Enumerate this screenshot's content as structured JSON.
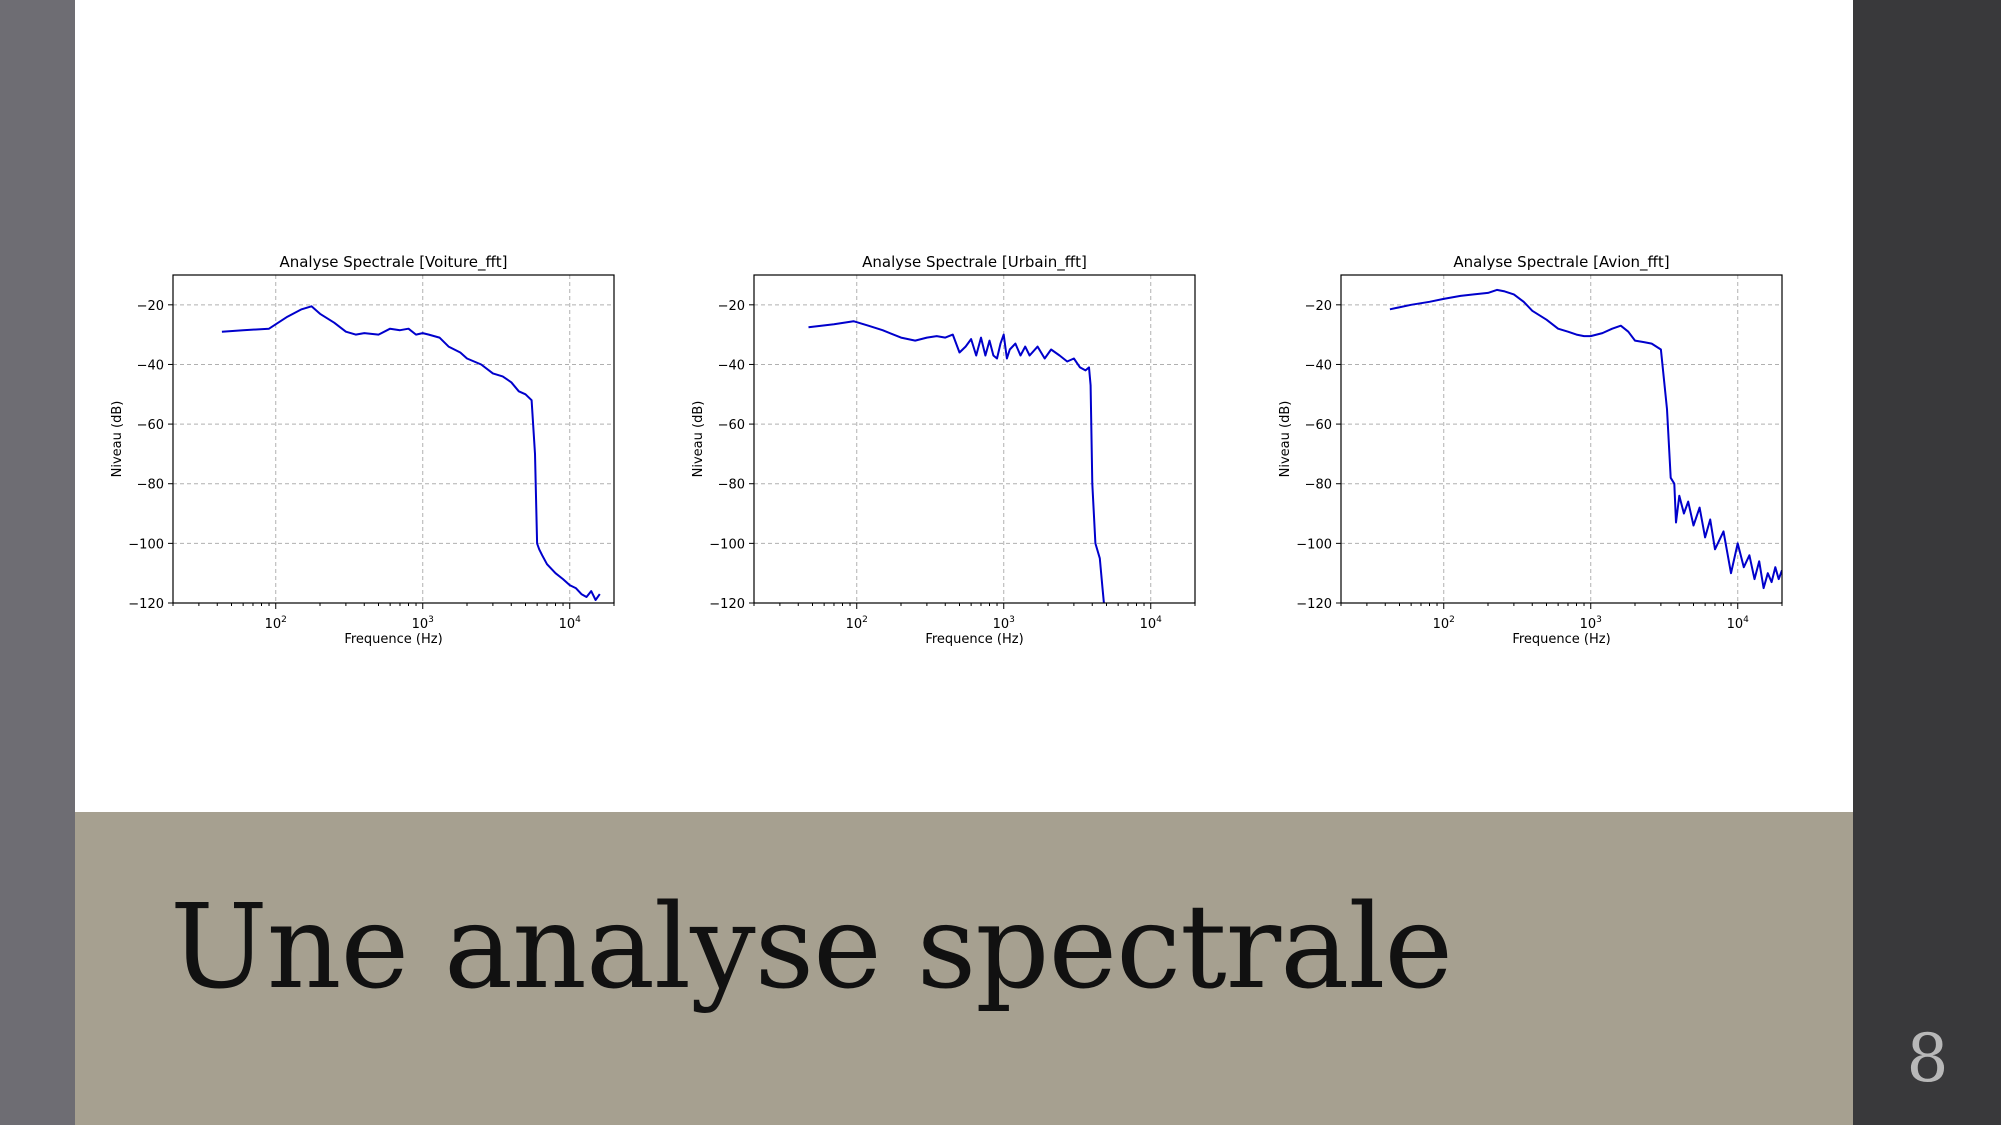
{
  "slide": {
    "title": "Une analyse spectrale",
    "page_number": "8"
  },
  "colors": {
    "series": "#0000cc",
    "title_band": "#a6a090",
    "left_band": "#6e6d73",
    "right_band": "#39393b"
  },
  "chart_data": [
    {
      "type": "line",
      "title": "Analyse Spectrale [Voiture_fft]",
      "xlabel": "Frequence (Hz)",
      "ylabel": "Niveau (dB)",
      "xscale": "log",
      "xlim": [
        20,
        20000
      ],
      "ylim": [
        -120,
        -10
      ],
      "yticks": [
        -20,
        -40,
        -60,
        -80,
        -100,
        -120
      ],
      "xticks": [
        100,
        1000,
        10000
      ],
      "xtick_labels": [
        {
          "base": "10",
          "exp": "2"
        },
        {
          "base": "10",
          "exp": "3"
        },
        {
          "base": "10",
          "exp": "4"
        }
      ],
      "grid": true,
      "x": [
        43,
        60,
        90,
        120,
        150,
        175,
        200,
        250,
        300,
        350,
        400,
        500,
        600,
        700,
        800,
        900,
        1000,
        1100,
        1300,
        1500,
        1800,
        2000,
        2500,
        3000,
        3500,
        4000,
        4500,
        5000,
        5500,
        5800,
        6000,
        6200,
        6500,
        7000,
        8000,
        9000,
        10000,
        11000,
        12000,
        13000,
        14000,
        15000,
        16000
      ],
      "y": [
        -29,
        -28.5,
        -28,
        -24,
        -21.5,
        -20.5,
        -23,
        -26,
        -29,
        -30,
        -29.5,
        -30,
        -28,
        -28.5,
        -28,
        -30,
        -29.5,
        -30,
        -31,
        -34,
        -36,
        -38,
        -40,
        -43,
        -44,
        -46,
        -49,
        -50,
        -52,
        -70,
        -100,
        -102,
        -104,
        -107,
        -110,
        -112,
        -114,
        -115,
        -117,
        -118,
        -116,
        -119,
        -117
      ]
    },
    {
      "type": "line",
      "title": "Analyse Spectrale [Urbain_fft]",
      "xlabel": "Frequence (Hz)",
      "ylabel": "Niveau (dB)",
      "xscale": "log",
      "xlim": [
        20,
        20000
      ],
      "ylim": [
        -120,
        -10
      ],
      "yticks": [
        -20,
        -40,
        -60,
        -80,
        -100,
        -120
      ],
      "xticks": [
        100,
        1000,
        10000
      ],
      "xtick_labels": [
        {
          "base": "10",
          "exp": "2"
        },
        {
          "base": "10",
          "exp": "3"
        },
        {
          "base": "10",
          "exp": "4"
        }
      ],
      "grid": true,
      "x": [
        47,
        70,
        95,
        120,
        150,
        200,
        250,
        300,
        350,
        400,
        450,
        500,
        550,
        600,
        650,
        700,
        750,
        800,
        850,
        900,
        950,
        1000,
        1050,
        1100,
        1200,
        1300,
        1400,
        1500,
        1700,
        1900,
        2100,
        2400,
        2700,
        3000,
        3300,
        3600,
        3800,
        3900,
        4000,
        4200,
        4500,
        4700,
        4800
      ],
      "y": [
        -27.5,
        -26.5,
        -25.5,
        -27,
        -28.5,
        -31,
        -32,
        -31,
        -30.5,
        -31,
        -30,
        -36,
        -34,
        -31.5,
        -37,
        -31,
        -37,
        -32,
        -37,
        -38,
        -33,
        -30,
        -38,
        -35,
        -33,
        -37,
        -34,
        -37,
        -34,
        -38,
        -35,
        -37,
        -39,
        -38,
        -41,
        -42,
        -41,
        -47,
        -80,
        -100,
        -105,
        -115,
        -120
      ]
    },
    {
      "type": "line",
      "title": "Analyse Spectrale [Avion_fft]",
      "xlabel": "Frequence (Hz)",
      "ylabel": "Niveau (dB)",
      "xscale": "log",
      "xlim": [
        20,
        20000
      ],
      "ylim": [
        -120,
        -10
      ],
      "yticks": [
        -20,
        -40,
        -60,
        -80,
        -100,
        -120
      ],
      "xticks": [
        100,
        1000,
        10000
      ],
      "xtick_labels": [
        {
          "base": "10",
          "exp": "2"
        },
        {
          "base": "10",
          "exp": "3"
        },
        {
          "base": "10",
          "exp": "4"
        }
      ],
      "grid": true,
      "x": [
        43,
        60,
        80,
        100,
        130,
        160,
        200,
        230,
        260,
        300,
        350,
        400,
        500,
        600,
        700,
        800,
        900,
        1000,
        1200,
        1400,
        1600,
        1800,
        2000,
        2300,
        2600,
        3000,
        3300,
        3500,
        3700,
        3800,
        4000,
        4300,
        4600,
        5000,
        5500,
        6000,
        6500,
        7000,
        8000,
        9000,
        10000,
        11000,
        12000,
        13000,
        14000,
        15000,
        16000,
        17000,
        18000,
        19000,
        20000
      ],
      "y": [
        -21.5,
        -20,
        -19,
        -18,
        -17,
        -16.5,
        -16,
        -15,
        -15.5,
        -16.5,
        -19,
        -22,
        -25,
        -28,
        -29,
        -30,
        -30.5,
        -30.5,
        -29.5,
        -28,
        -27,
        -29,
        -32,
        -32.5,
        -33,
        -35,
        -55,
        -78,
        -80,
        -93,
        -84,
        -90,
        -86,
        -94,
        -88,
        -98,
        -92,
        -102,
        -96,
        -110,
        -100,
        -108,
        -104,
        -112,
        -106,
        -115,
        -110,
        -113,
        -108,
        -112,
        -109
      ]
    }
  ]
}
